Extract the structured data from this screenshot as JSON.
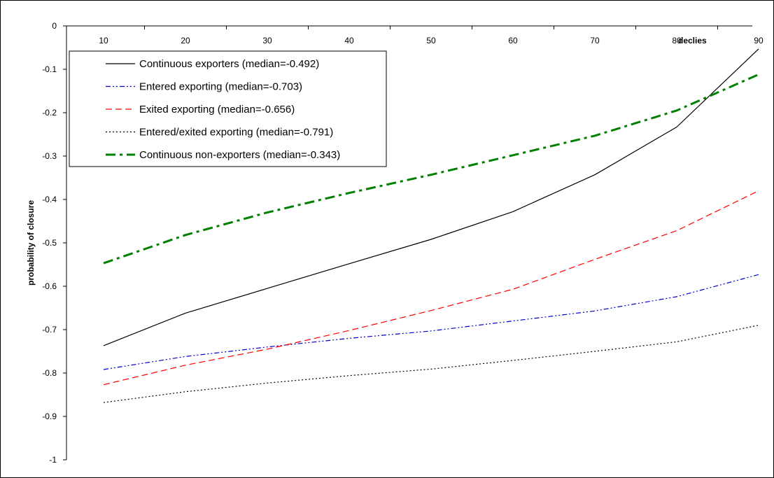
{
  "chart_data": {
    "type": "line",
    "title": "",
    "xlabel": "declies",
    "ylabel": "probability of closure",
    "x": [
      10,
      20,
      30,
      40,
      50,
      60,
      70,
      80,
      90
    ],
    "x_tick_labels": [
      "10",
      "20",
      "30",
      "40",
      "50",
      "60",
      "70",
      "80",
      "90"
    ],
    "y_tick_labels": [
      "0",
      "-0.1",
      "-0.2",
      "-0.3",
      "-0.4",
      "-0.5",
      "-0.6",
      "-0.7",
      "-0.8",
      "-0.9",
      "-1"
    ],
    "ylim": [
      -1,
      0
    ],
    "grid": false,
    "legend_position": "top-left",
    "series": [
      {
        "name": "Continuous exporters (median=-0.492)",
        "color": "#000000",
        "dash": "solid",
        "values": [
          -0.737,
          -0.662,
          -0.605,
          -0.548,
          -0.492,
          -0.428,
          -0.343,
          -0.233,
          -0.053
        ]
      },
      {
        "name": "Entered exporting (median=-0.703)",
        "color": "#0000cc",
        "dash": "dash-dot-dot",
        "values": [
          -0.792,
          -0.762,
          -0.74,
          -0.72,
          -0.703,
          -0.68,
          -0.657,
          -0.624,
          -0.573
        ]
      },
      {
        "name": "Exited exporting (median=-0.656)",
        "color": "#ff0000",
        "dash": "dashed",
        "values": [
          -0.827,
          -0.782,
          -0.745,
          -0.702,
          -0.656,
          -0.607,
          -0.538,
          -0.472,
          -0.38
        ]
      },
      {
        "name": "Entered/exited exporting (median=-0.791)",
        "color": "#000000",
        "dash": "dotted",
        "values": [
          -0.868,
          -0.843,
          -0.823,
          -0.806,
          -0.791,
          -0.771,
          -0.75,
          -0.728,
          -0.69
        ]
      },
      {
        "name": "Continuous non-exporters (median=-0.343)",
        "color": "#008000",
        "dash": "long-dash-dot",
        "values": [
          -0.547,
          -0.482,
          -0.43,
          -0.385,
          -0.343,
          -0.298,
          -0.253,
          -0.195,
          -0.112
        ]
      }
    ]
  }
}
